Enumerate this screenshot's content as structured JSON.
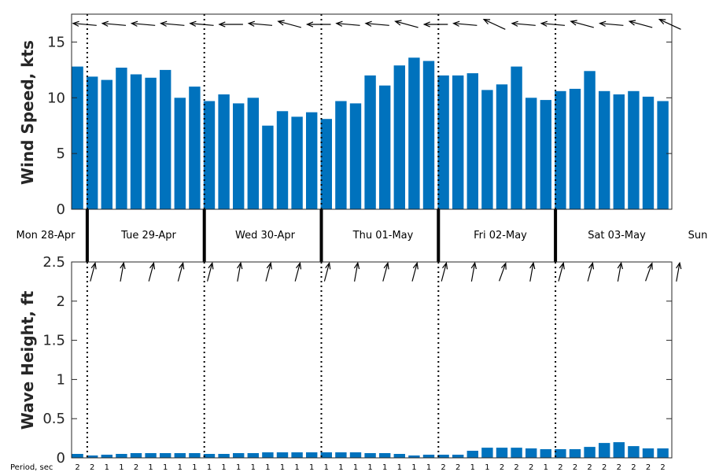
{
  "colors": {
    "bar": "#0072bd",
    "axis": "#262626",
    "background": "#ffffff"
  },
  "chart_data": {
    "type": "bar",
    "x_unit": "3-hour intervals starting Mon 28-Apr 21:00",
    "day_labels": [
      "Mon 28-Apr",
      "Tue 29-Apr",
      "Wed 30-Apr",
      "Thu 01-May",
      "Fri 02-May",
      "Sat 03-May",
      "Sun"
    ],
    "period_label": "Period, sec",
    "periods": [
      2,
      2,
      1,
      1,
      2,
      1,
      1,
      1,
      1,
      1,
      1,
      1,
      1,
      1,
      1,
      1,
      1,
      1,
      1,
      1,
      1,
      1,
      1,
      1,
      1,
      2,
      2,
      1,
      1,
      2,
      2,
      2,
      1,
      2,
      2,
      2,
      2,
      2,
      2,
      2,
      2
    ],
    "panels": [
      {
        "name": "wind",
        "ylabel": "Wind Speed, kts",
        "ylim": [
          0,
          17.5
        ],
        "yticks": [
          0,
          5,
          10,
          15
        ],
        "values": [
          12.8,
          11.9,
          11.6,
          12.7,
          12.1,
          11.8,
          12.5,
          10.0,
          11.0,
          9.7,
          10.3,
          9.5,
          10.0,
          7.5,
          8.8,
          8.3,
          8.7,
          8.1,
          9.7,
          9.5,
          12.0,
          11.1,
          12.9,
          13.6,
          13.3,
          12.0,
          12.0,
          12.2,
          10.7,
          11.2,
          12.8,
          10.0,
          9.8,
          10.6,
          10.8,
          12.4,
          10.6,
          10.3,
          10.6,
          10.1,
          9.7
        ],
        "direction_arrows_deg": [
          275,
          275,
          275,
          270,
          275,
          280,
          275,
          275,
          275,
          270,
          270,
          275,
          275,
          290,
          285,
          275,
          270,
          270,
          275,
          275,
          275,
          280,
          285,
          270,
          270,
          275,
          275,
          280,
          295,
          275,
          275,
          280,
          275,
          280,
          285,
          295,
          275,
          280,
          285,
          290,
          295
        ]
      },
      {
        "name": "wave",
        "ylabel": "Wave Height, ft",
        "ylim": [
          0,
          2.5
        ],
        "yticks": [
          0,
          0.5,
          1,
          1.5,
          2,
          2.5
        ],
        "ytick_labels": [
          "0",
          "0.5",
          "1",
          "1.5",
          "2",
          "2.5"
        ],
        "values": [
          0.05,
          0.03,
          0.04,
          0.05,
          0.06,
          0.06,
          0.06,
          0.06,
          0.06,
          0.05,
          0.05,
          0.06,
          0.06,
          0.07,
          0.07,
          0.07,
          0.07,
          0.07,
          0.07,
          0.07,
          0.06,
          0.06,
          0.05,
          0.03,
          0.04,
          0.04,
          0.04,
          0.09,
          0.13,
          0.13,
          0.13,
          0.12,
          0.11,
          0.11,
          0.11,
          0.14,
          0.19,
          0.2,
          0.15,
          0.12,
          0.12
        ],
        "direction_arrows_deg": [
          15,
          15,
          10,
          15,
          15,
          10,
          15,
          20,
          15,
          10,
          10,
          15,
          15,
          10,
          15,
          20,
          15,
          10,
          10,
          15,
          15,
          10,
          15,
          10,
          15,
          15,
          10,
          15,
          20,
          15,
          10,
          10,
          15,
          15,
          15,
          15,
          10,
          15,
          20,
          15,
          10
        ]
      }
    ]
  }
}
